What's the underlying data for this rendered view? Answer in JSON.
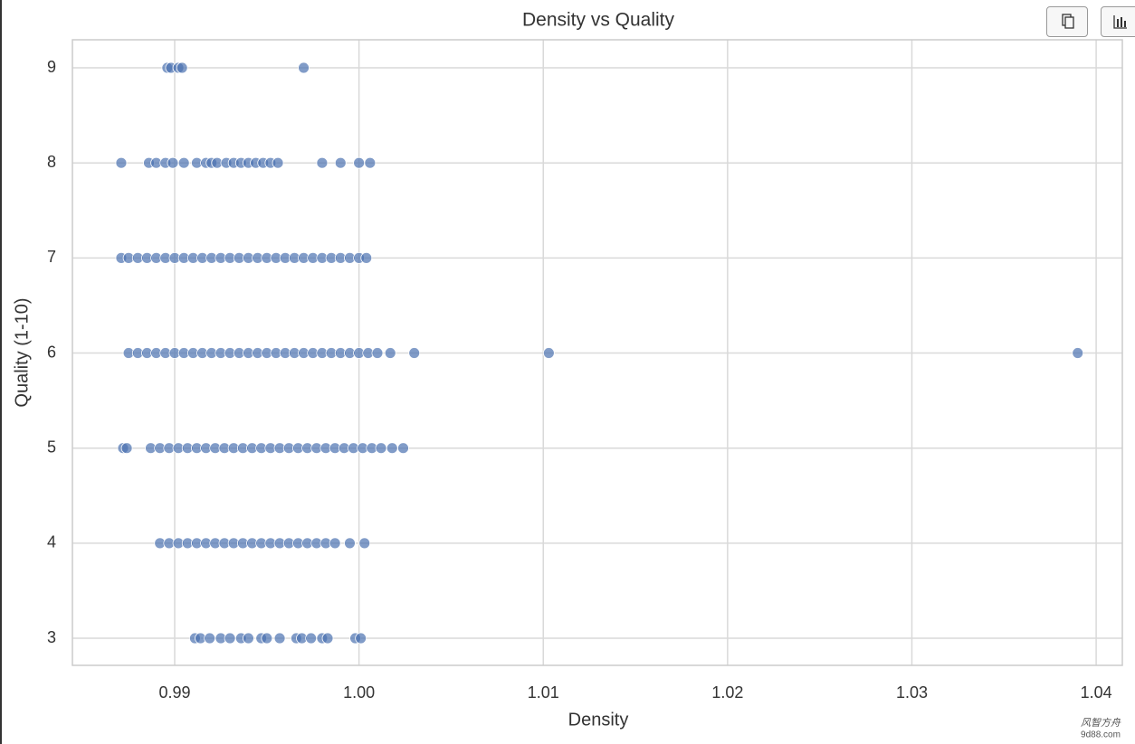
{
  "chart_data": {
    "type": "scatter",
    "title": "Density vs Quality",
    "xlabel": "Density",
    "ylabel": "Quality (1-10)",
    "color": "#4c72b0",
    "grid": true,
    "xlim": [
      0.98445,
      1.04142
    ],
    "ylim": [
      2.715,
      9.295
    ],
    "xticks": [
      0.99,
      {
        "value": 1,
        "label": "1.00"
      },
      1.01,
      1.02,
      1.03,
      1.04
    ],
    "yticks": [
      3,
      4,
      5,
      6,
      7,
      8,
      9
    ],
    "x": [
      0.9896,
      0.9898,
      0.9902,
      0.9904,
      0.997,
      0.9871,
      0.9886,
      0.989,
      0.9895,
      0.9899,
      0.9905,
      0.9912,
      0.9917,
      0.992,
      0.9923,
      0.9928,
      0.9932,
      0.9936,
      0.994,
      0.9944,
      0.9948,
      0.9952,
      0.9956,
      0.998,
      0.999,
      1.0,
      1.0006,
      0.9871,
      0.9875,
      0.988,
      0.9885,
      0.989,
      0.9895,
      0.99,
      0.9905,
      0.991,
      0.9915,
      0.992,
      0.9925,
      0.993,
      0.9935,
      0.994,
      0.9945,
      0.995,
      0.9955,
      0.996,
      0.9965,
      0.997,
      0.9975,
      0.998,
      0.9985,
      0.999,
      0.9995,
      1.0,
      1.0004,
      0.9875,
      0.988,
      0.9885,
      0.989,
      0.9895,
      0.99,
      0.9905,
      0.991,
      0.9915,
      0.992,
      0.9925,
      0.993,
      0.9935,
      0.994,
      0.9945,
      0.995,
      0.9955,
      0.996,
      0.9965,
      0.997,
      0.9975,
      0.998,
      0.9985,
      0.999,
      0.9995,
      1.0,
      1.0005,
      1.001,
      1.0017,
      1.003,
      1.0103,
      1.039,
      0.9872,
      0.9874,
      0.9887,
      0.9892,
      0.9897,
      0.9902,
      0.9907,
      0.9912,
      0.9917,
      0.9922,
      0.9927,
      0.9932,
      0.9937,
      0.9942,
      0.9947,
      0.9952,
      0.9957,
      0.9962,
      0.9967,
      0.9972,
      0.9977,
      0.9982,
      0.9987,
      0.9992,
      0.9997,
      1.0002,
      1.0007,
      1.0012,
      1.0018,
      1.0024,
      0.9892,
      0.9897,
      0.9902,
      0.9907,
      0.9912,
      0.9917,
      0.9922,
      0.9927,
      0.9932,
      0.9937,
      0.9942,
      0.9947,
      0.9952,
      0.9957,
      0.9962,
      0.9967,
      0.9972,
      0.9977,
      0.9982,
      0.9987,
      0.9995,
      1.0003,
      0.9911,
      0.9914,
      0.9919,
      0.9925,
      0.993,
      0.9936,
      0.994,
      0.9947,
      0.995,
      0.9957,
      0.9966,
      0.9969,
      0.9974,
      0.998,
      0.9983,
      0.9998,
      1.0001
    ],
    "values": [
      9,
      9,
      9,
      9,
      9,
      8,
      8,
      8,
      8,
      8,
      8,
      8,
      8,
      8,
      8,
      8,
      8,
      8,
      8,
      8,
      8,
      8,
      8,
      8,
      8,
      8,
      8,
      7,
      7,
      7,
      7,
      7,
      7,
      7,
      7,
      7,
      7,
      7,
      7,
      7,
      7,
      7,
      7,
      7,
      7,
      7,
      7,
      7,
      7,
      7,
      7,
      7,
      7,
      7,
      7,
      6,
      6,
      6,
      6,
      6,
      6,
      6,
      6,
      6,
      6,
      6,
      6,
      6,
      6,
      6,
      6,
      6,
      6,
      6,
      6,
      6,
      6,
      6,
      6,
      6,
      6,
      6,
      6,
      6,
      6,
      6,
      6,
      5,
      5,
      5,
      5,
      5,
      5,
      5,
      5,
      5,
      5,
      5,
      5,
      5,
      5,
      5,
      5,
      5,
      5,
      5,
      5,
      5,
      5,
      5,
      5,
      5,
      5,
      5,
      5,
      5,
      5,
      4,
      4,
      4,
      4,
      4,
      4,
      4,
      4,
      4,
      4,
      4,
      4,
      4,
      4,
      4,
      4,
      4,
      4,
      4,
      4,
      4,
      4,
      3,
      3,
      3,
      3,
      3,
      3,
      3,
      3,
      3,
      3,
      3,
      3,
      3,
      3,
      3,
      3,
      3
    ]
  },
  "watermark": [
    "风智方舟",
    "9d88.com"
  ]
}
